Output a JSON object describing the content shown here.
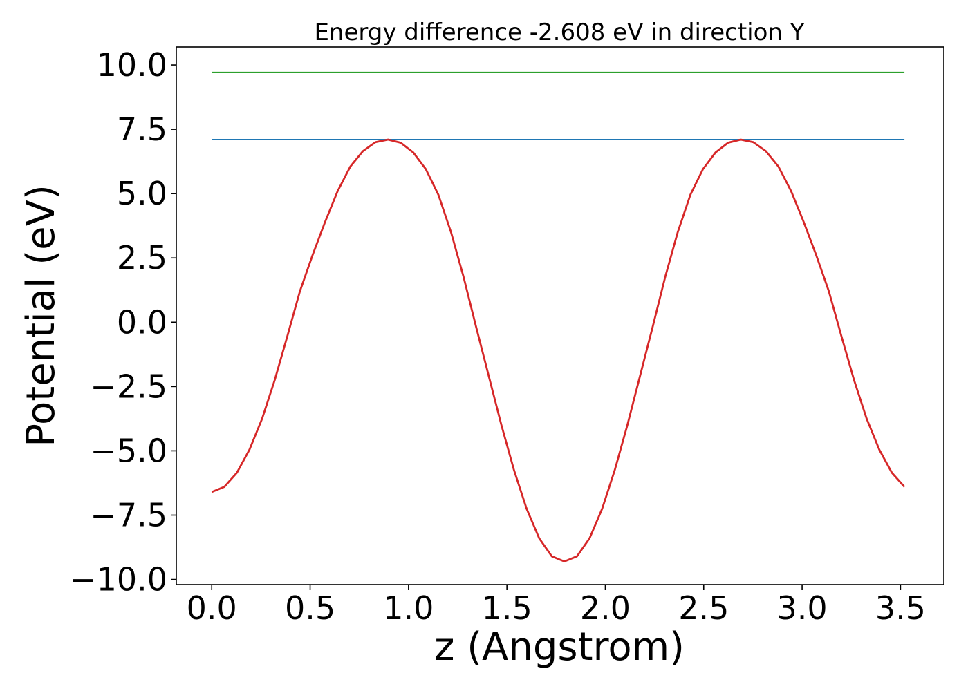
{
  "chart_data": {
    "type": "line",
    "title": "Energy difference -2.608 eV in direction Y",
    "xlabel": "z (Angstrom)",
    "ylabel": "Potential (eV)",
    "xlim": [
      -0.18,
      3.72
    ],
    "ylim": [
      -10.2,
      10.7
    ],
    "xticks": [
      0.0,
      0.5,
      1.0,
      1.5,
      2.0,
      2.5,
      3.0,
      3.5
    ],
    "xtick_labels": [
      "0.0",
      "0.5",
      "1.0",
      "1.5",
      "2.0",
      "2.5",
      "3.0",
      "3.5"
    ],
    "yticks": [
      10.0,
      7.5,
      5.0,
      2.5,
      0.0,
      -2.5,
      -5.0,
      -7.5,
      -10.0
    ],
    "ytick_labels": [
      "10.0",
      "7.5",
      "5.0",
      "2.5",
      "0.0",
      "−2.5",
      "−5.0",
      "−7.5",
      "−10.0"
    ],
    "grid": false,
    "series": [
      {
        "color": "#2ca02c",
        "x": [
          0.0,
          3.52
        ],
        "y": [
          9.71,
          9.71
        ]
      },
      {
        "color": "#1f77b4",
        "x": [
          0.0,
          3.52
        ],
        "y": [
          7.1,
          7.1
        ]
      },
      {
        "color": "#d62728",
        "x": [
          0.0,
          0.064,
          0.128,
          0.192,
          0.256,
          0.32,
          0.384,
          0.448,
          0.512,
          0.576,
          0.64,
          0.704,
          0.768,
          0.832,
          0.896,
          0.96,
          1.024,
          1.088,
          1.152,
          1.216,
          1.28,
          1.344,
          1.408,
          1.472,
          1.536,
          1.6,
          1.664,
          1.728,
          1.792,
          1.856,
          1.92,
          1.984,
          2.048,
          2.112,
          2.176,
          2.24,
          2.304,
          2.368,
          2.432,
          2.496,
          2.56,
          2.624,
          2.688,
          2.752,
          2.816,
          2.88,
          2.944,
          3.008,
          3.072,
          3.136,
          3.2,
          3.264,
          3.328,
          3.392,
          3.456,
          3.52
        ],
        "y": [
          -6.6,
          -6.4,
          -5.85,
          -4.95,
          -3.75,
          -2.25,
          -0.55,
          1.2,
          2.6,
          3.9,
          5.1,
          6.05,
          6.65,
          7.0,
          7.1,
          6.98,
          6.6,
          5.95,
          4.95,
          3.5,
          1.75,
          -0.2,
          -2.1,
          -4.0,
          -5.75,
          -7.25,
          -8.4,
          -9.1,
          -9.3,
          -9.1,
          -8.4,
          -7.25,
          -5.75,
          -4.0,
          -2.1,
          -0.2,
          1.75,
          3.5,
          4.95,
          5.95,
          6.6,
          6.98,
          7.1,
          7.0,
          6.65,
          6.05,
          5.1,
          3.9,
          2.6,
          1.2,
          -0.55,
          -2.25,
          -3.75,
          -4.95,
          -5.85,
          -6.4
        ]
      }
    ]
  }
}
